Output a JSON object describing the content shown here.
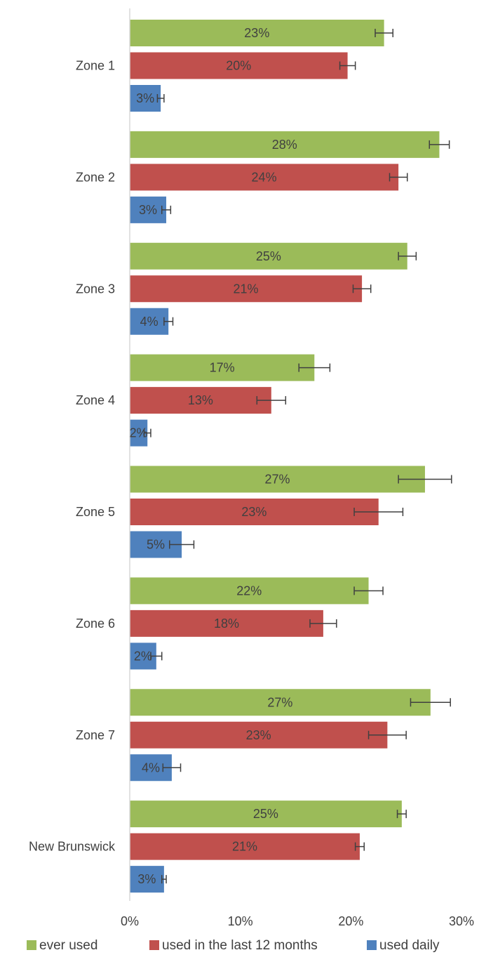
{
  "chart_data": {
    "type": "bar",
    "orientation": "horizontal",
    "categories": [
      "Zone 1",
      "Zone 2",
      "Zone 3",
      "Zone 4",
      "Zone 5",
      "Zone 6",
      "Zone 7",
      "New Brunswick"
    ],
    "series": [
      {
        "name": "ever used",
        "color": "#9BBB59",
        "values": [
          23.0,
          28.0,
          25.1,
          16.7,
          26.7,
          21.6,
          27.2,
          24.6
        ],
        "labels": [
          "23%",
          "28%",
          "25%",
          "17%",
          "27%",
          "22%",
          "27%",
          "25%"
        ],
        "error": [
          0.8,
          0.9,
          0.8,
          1.4,
          2.4,
          1.3,
          1.8,
          0.4
        ]
      },
      {
        "name": "used in the last 12 months",
        "color": "#C0504D",
        "values": [
          19.7,
          24.3,
          21.0,
          12.8,
          22.5,
          17.5,
          23.3,
          20.8
        ],
        "labels": [
          "20%",
          "24%",
          "21%",
          "13%",
          "23%",
          "18%",
          "23%",
          "21%"
        ],
        "error": [
          0.7,
          0.8,
          0.8,
          1.3,
          2.2,
          1.2,
          1.7,
          0.4
        ]
      },
      {
        "name": "used daily",
        "color": "#4F81BD",
        "values": [
          2.8,
          3.3,
          3.5,
          1.6,
          4.7,
          2.4,
          3.8,
          3.1
        ],
        "labels": [
          "3%",
          "3%",
          "4%",
          "2%",
          "5%",
          "2%",
          "4%",
          "3%"
        ],
        "error": [
          0.3,
          0.4,
          0.4,
          0.3,
          1.1,
          0.5,
          0.8,
          0.2
        ]
      }
    ],
    "x_ticks": [
      "0%",
      "10%",
      "20%",
      "30%"
    ],
    "xlim": [
      0,
      30
    ],
    "grid": false,
    "legend_position": "bottom"
  }
}
